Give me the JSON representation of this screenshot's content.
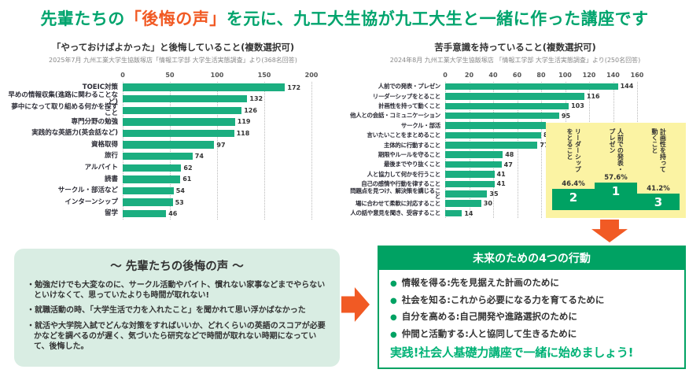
{
  "main_title": {
    "prefix": "先輩たちの",
    "highlight": "「後悔の声」",
    "suffix": "を元に、九工大生協が九工大生と一緒に作った講座です"
  },
  "colors": {
    "green": "#00a46d",
    "bar_green": "#1bae80",
    "deep_green": "#00a263",
    "orange": "#f15a24",
    "mint_bg": "#d9ede3",
    "yellow_bg": "#fbf3a3"
  },
  "chart_data": [
    {
      "type": "bar",
      "orientation": "horizontal",
      "title": "「やっておけばよかった」と後悔していること(複数選択可)",
      "subtitle": "2025年7月 九州工業大学生協飯塚店「情報工学部 大学生活実態調査」より(368名回答)",
      "categories": [
        "TOEIC対策",
        "早めの情報収集(進路に関わることなど)",
        "夢中になって取り組める何かを探すこと",
        "専門分野の勉強",
        "実践的な英語力(英会話など)",
        "資格取得",
        "旅行",
        "アルバイト",
        "読書",
        "サークル・部活など",
        "インターンシップ",
        "留学"
      ],
      "values": [
        172,
        132,
        126,
        119,
        118,
        97,
        74,
        62,
        61,
        54,
        53,
        46
      ],
      "xlim": [
        0,
        200
      ],
      "ticks": [
        0,
        50,
        100,
        150,
        200
      ],
      "grid": "dotted-vertical",
      "legend": "none"
    },
    {
      "type": "bar",
      "orientation": "horizontal",
      "title": "苦手意識を持っていること(複数選択可)",
      "subtitle": "2024年8月 九州工業大学生協飯塚店 「情報工学部 大学生活実態調査」より(250名回答)",
      "categories": [
        "人前での発表・プレゼン",
        "リーダーシップをとること",
        "計画性を持って動くこと",
        "他人との会話・コミュニケーション",
        "サークル・部活",
        "言いたいことをまとめること",
        "主体的に行動すること",
        "期限やルールを守ること",
        "最後までやり抜くこと",
        "人と協力して何かを行うこと",
        "自己の感情や行動を律すること",
        "問題点を見つけ、解決策を講じること",
        "場に合わせて柔軟に対応すること",
        "人の話や意見を聞き、受容すること"
      ],
      "values": [
        144,
        116,
        103,
        95,
        84,
        80,
        77,
        48,
        47,
        41,
        41,
        35,
        30,
        14
      ],
      "xlim": [
        0,
        160
      ],
      "ticks": [
        0,
        20,
        40,
        60,
        80,
        100,
        120,
        140,
        160
      ],
      "grid": "dotted-vertical",
      "legend": "none"
    }
  ],
  "podium": {
    "items": [
      {
        "rank": "2",
        "label": "リーダーシップをとること",
        "percent": "46.4%"
      },
      {
        "rank": "1",
        "label": "人前での発表・プレゼン",
        "percent": "57.6%"
      },
      {
        "rank": "3",
        "label": "計画性を持って動くこと",
        "percent": "41.2%"
      }
    ]
  },
  "regret_box": {
    "title": "～ 先輩たちの後悔の声 ～",
    "bullets": [
      "・勉強だけでも大変なのに、サークル活動やバイト、慣れない家事などまでやらないといけなくて、思っていたよりも時間が取れない!",
      "・就職活動の時、「大学生活で力を入れたこと」を聞かれて思い浮かばなかった",
      "・就活や大学院入試でどんな対策をすればいいか、どれくらいの英語のスコアが必要かなどを調べるのが遅く、気づいたら研究などで時間が取れない時期になっていて、後悔した。"
    ]
  },
  "action_box": {
    "title": "未来のための4つの行動",
    "bullet_icon": "●",
    "bullets": [
      "情報を得る:先を見据えた計画のために",
      "社会を知る:これから必要になる力を育てるために",
      "自分を高める:自己開発や進路選択のために",
      "仲間と活動する:人と協同して生きるために"
    ],
    "footer": "実践!社会人基礎力講座で一緒に始めましょう!"
  }
}
